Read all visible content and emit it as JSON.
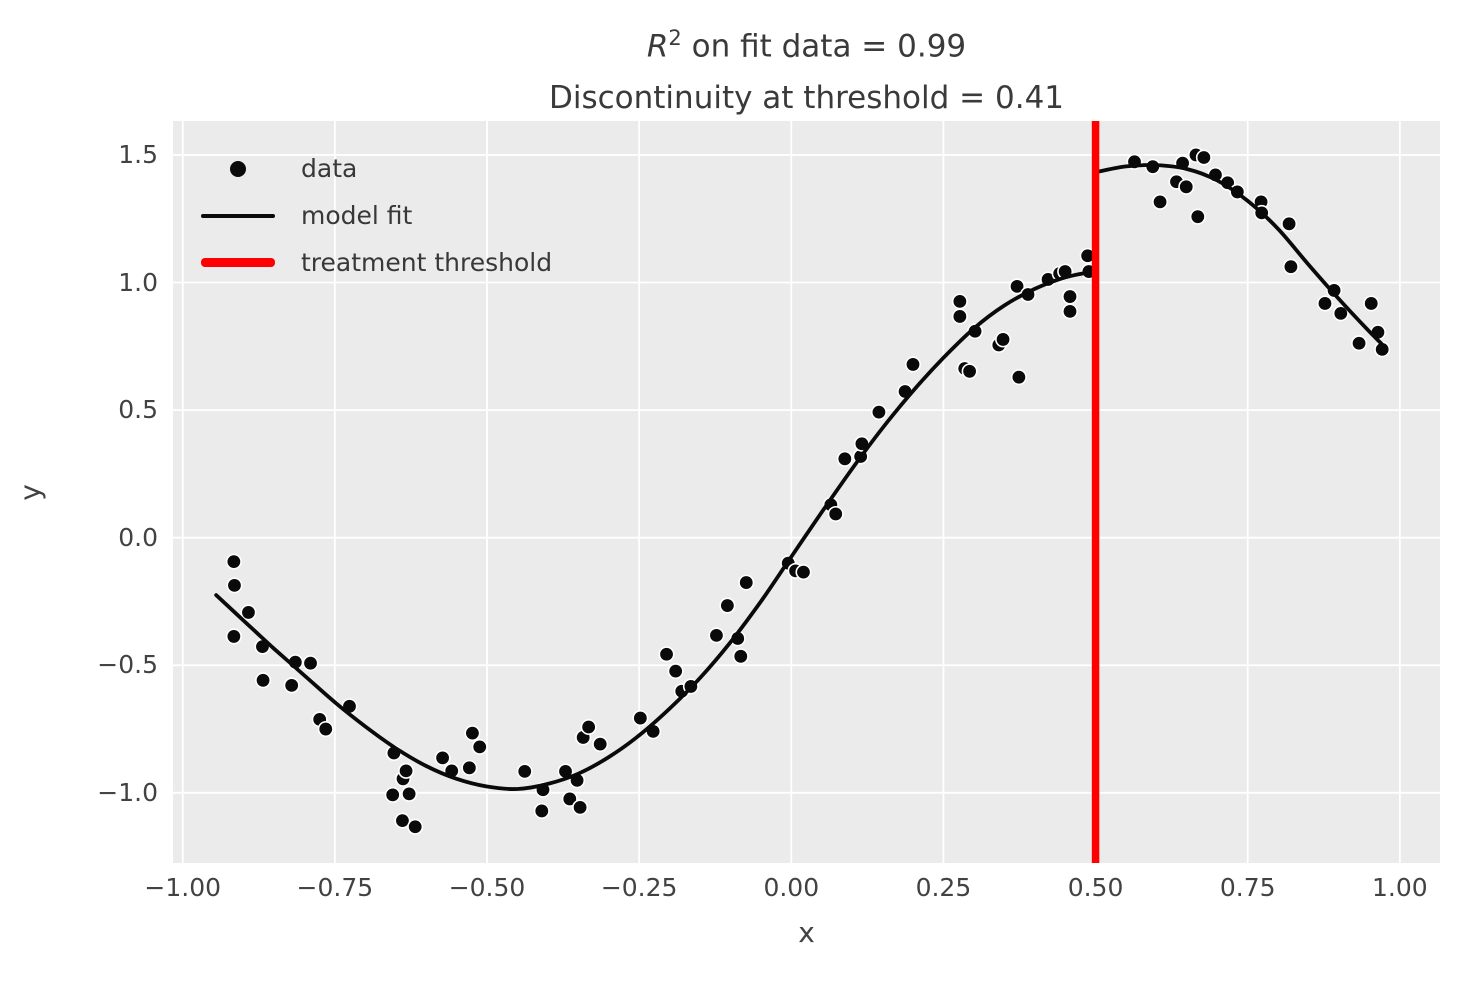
{
  "title": {
    "r": "R",
    "sup": "2",
    "line1_rest": " on fit data = 0.99",
    "line2": "Discontinuity at threshold = 0.41"
  },
  "chart_data": {
    "type": "scatter",
    "title": "R^2 on fit data = 0.99\nDiscontinuity at threshold = 0.41",
    "xlabel": "x",
    "ylabel": "y",
    "r_squared": 0.99,
    "discontinuity": 0.41,
    "threshold_x": 0.5,
    "xlim": [
      -1.016,
      1.066
    ],
    "ylim": [
      -1.275,
      1.633
    ],
    "grid": true,
    "plot_bg": "#ebebeb",
    "grid_color": "#ffffff",
    "xticks": {
      "values": [
        -1.0,
        -0.75,
        -0.5,
        -0.25,
        0.0,
        0.25,
        0.5,
        0.75,
        1.0
      ],
      "labels": [
        "−1.00",
        "−0.75",
        "−0.50",
        "−0.25",
        "0.00",
        "0.25",
        "0.50",
        "0.75",
        "1.00"
      ]
    },
    "yticks": {
      "values": [
        1.5,
        1.0,
        0.5,
        0.0,
        -0.5,
        -1.0
      ],
      "labels": [
        "1.5",
        "1.0",
        "0.5",
        "0.0",
        "−0.5",
        "−1.0"
      ]
    },
    "legend": {
      "position": "upper left",
      "entries": [
        {
          "label": "data",
          "marker": "dot",
          "color": "#0a0a0a"
        },
        {
          "label": "model fit",
          "marker": "line",
          "color": "#0a0a0a"
        },
        {
          "label": "treatment threshold",
          "marker": "thick-line",
          "color": "#ff0000"
        }
      ]
    },
    "series": [
      {
        "name": "data",
        "type": "scatter",
        "color": "#0a0a0a",
        "edge_color": "#ffffff",
        "points": [
          [
            -0.916,
            -0.094
          ],
          [
            -0.915,
            -0.187
          ],
          [
            -0.892,
            -0.293
          ],
          [
            -0.916,
            -0.387
          ],
          [
            -0.869,
            -0.427
          ],
          [
            -0.868,
            -0.559
          ],
          [
            -0.821,
            -0.579
          ],
          [
            -0.815,
            -0.488
          ],
          [
            -0.79,
            -0.492
          ],
          [
            -0.775,
            -0.712
          ],
          [
            -0.765,
            -0.75
          ],
          [
            -0.726,
            -0.661
          ],
          [
            -0.655,
            -1.008
          ],
          [
            -0.653,
            -0.844
          ],
          [
            -0.639,
            -1.109
          ],
          [
            -0.638,
            -0.945
          ],
          [
            -0.633,
            -0.914
          ],
          [
            -0.628,
            -1.004
          ],
          [
            -0.618,
            -1.133
          ],
          [
            -0.573,
            -0.863
          ],
          [
            -0.558,
            -0.914
          ],
          [
            -0.529,
            -0.902
          ],
          [
            -0.524,
            -0.766
          ],
          [
            -0.512,
            -0.82
          ],
          [
            -0.438,
            -0.916
          ],
          [
            -0.41,
            -1.071
          ],
          [
            -0.408,
            -0.988
          ],
          [
            -0.371,
            -0.916
          ],
          [
            -0.364,
            -1.024
          ],
          [
            -0.352,
            -0.951
          ],
          [
            -0.347,
            -1.057
          ],
          [
            -0.342,
            -0.783
          ],
          [
            -0.333,
            -0.742
          ],
          [
            -0.314,
            -0.809
          ],
          [
            -0.248,
            -0.707
          ],
          [
            -0.227,
            -0.759
          ],
          [
            -0.205,
            -0.457
          ],
          [
            -0.19,
            -0.523
          ],
          [
            -0.18,
            -0.602
          ],
          [
            -0.165,
            -0.583
          ],
          [
            -0.123,
            -0.383
          ],
          [
            -0.105,
            -0.266
          ],
          [
            -0.088,
            -0.395
          ],
          [
            -0.083,
            -0.465
          ],
          [
            -0.074,
            -0.176
          ],
          [
            -0.005,
            -0.1
          ],
          [
            0.007,
            -0.13
          ],
          [
            0.02,
            -0.135
          ],
          [
            0.065,
            0.129
          ],
          [
            0.073,
            0.093
          ],
          [
            0.088,
            0.309
          ],
          [
            0.114,
            0.318
          ],
          [
            0.116,
            0.368
          ],
          [
            0.144,
            0.492
          ],
          [
            0.187,
            0.573
          ],
          [
            0.2,
            0.679
          ],
          [
            0.277,
            0.926
          ],
          [
            0.277,
            0.867
          ],
          [
            0.285,
            0.663
          ],
          [
            0.293,
            0.652
          ],
          [
            0.302,
            0.809
          ],
          [
            0.341,
            0.755
          ],
          [
            0.348,
            0.777
          ],
          [
            0.371,
            0.985
          ],
          [
            0.374,
            0.629
          ],
          [
            0.389,
            0.953
          ],
          [
            0.422,
            1.012
          ],
          [
            0.441,
            1.035
          ],
          [
            0.45,
            1.043
          ],
          [
            0.458,
            0.945
          ],
          [
            0.458,
            0.887
          ],
          [
            0.487,
            1.105
          ],
          [
            0.489,
            1.043
          ],
          [
            0.564,
            1.473
          ],
          [
            0.594,
            1.454
          ],
          [
            0.606,
            1.316
          ],
          [
            0.633,
            1.395
          ],
          [
            0.643,
            1.468
          ],
          [
            0.649,
            1.375
          ],
          [
            0.665,
            1.5
          ],
          [
            0.678,
            1.49
          ],
          [
            0.668,
            1.258
          ],
          [
            0.697,
            1.422
          ],
          [
            0.717,
            1.391
          ],
          [
            0.733,
            1.355
          ],
          [
            0.772,
            1.316
          ],
          [
            0.773,
            1.273
          ],
          [
            0.818,
            1.23
          ],
          [
            0.821,
            1.062
          ],
          [
            0.877,
            0.918
          ],
          [
            0.892,
            0.969
          ],
          [
            0.903,
            0.879
          ],
          [
            0.933,
            0.762
          ],
          [
            0.953,
            0.918
          ],
          [
            0.964,
            0.805
          ],
          [
            0.971,
            0.738
          ]
        ]
      },
      {
        "name": "model fit",
        "type": "line",
        "color": "#0a0a0a",
        "width": 3.8,
        "segments": [
          [
            [
              -0.945,
              -0.225
            ],
            [
              -0.9,
              -0.325
            ],
            [
              -0.85,
              -0.435
            ],
            [
              -0.8,
              -0.54
            ],
            [
              -0.75,
              -0.645
            ],
            [
              -0.7,
              -0.74
            ],
            [
              -0.65,
              -0.825
            ],
            [
              -0.6,
              -0.895
            ],
            [
              -0.55,
              -0.945
            ],
            [
              -0.5,
              -0.975
            ],
            [
              -0.45,
              -0.985
            ],
            [
              -0.4,
              -0.965
            ],
            [
              -0.35,
              -0.925
            ],
            [
              -0.3,
              -0.86
            ],
            [
              -0.25,
              -0.775
            ],
            [
              -0.2,
              -0.67
            ],
            [
              -0.15,
              -0.55
            ],
            [
              -0.1,
              -0.41
            ],
            [
              -0.05,
              -0.25
            ],
            [
              0.0,
              -0.075
            ],
            [
              0.05,
              0.1
            ],
            [
              0.1,
              0.27
            ],
            [
              0.15,
              0.43
            ],
            [
              0.2,
              0.575
            ],
            [
              0.25,
              0.705
            ],
            [
              0.3,
              0.82
            ],
            [
              0.35,
              0.91
            ],
            [
              0.4,
              0.975
            ],
            [
              0.45,
              1.02
            ],
            [
              0.5,
              1.045
            ]
          ],
          [
            [
              0.505,
              1.435
            ],
            [
              0.55,
              1.455
            ],
            [
              0.6,
              1.46
            ],
            [
              0.65,
              1.445
            ],
            [
              0.7,
              1.4
            ],
            [
              0.75,
              1.32
            ],
            [
              0.8,
              1.21
            ],
            [
              0.85,
              1.07
            ],
            [
              0.9,
              0.935
            ],
            [
              0.945,
              0.82
            ],
            [
              0.97,
              0.76
            ]
          ]
        ]
      },
      {
        "name": "treatment threshold",
        "type": "vline",
        "x": 0.5,
        "color": "#ff0000",
        "width": 7.5
      }
    ]
  }
}
